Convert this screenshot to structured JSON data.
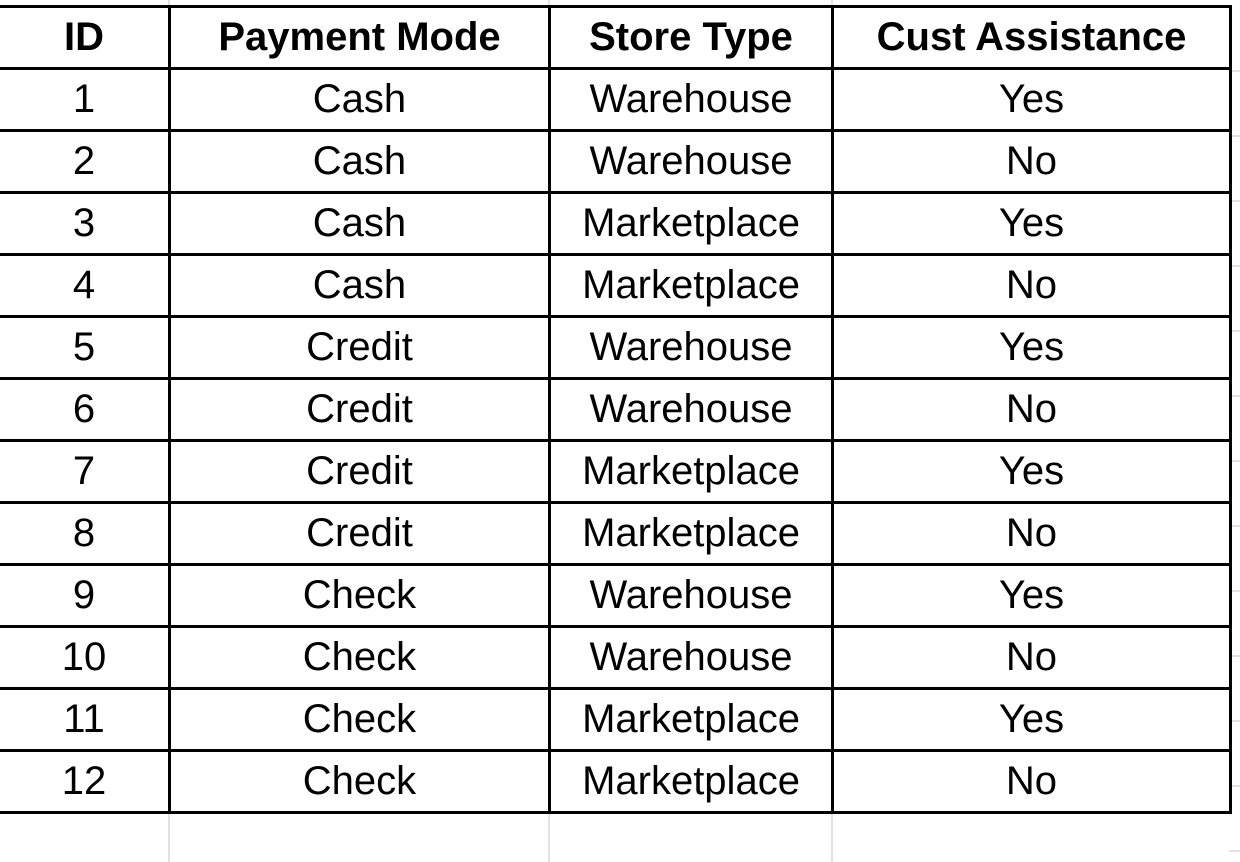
{
  "table": {
    "headers": [
      "ID",
      "Payment Mode",
      "Store Type",
      "Cust Assistance"
    ],
    "rows": [
      [
        "1",
        "Cash",
        "Warehouse",
        "Yes"
      ],
      [
        "2",
        "Cash",
        "Warehouse",
        "No"
      ],
      [
        "3",
        "Cash",
        "Marketplace",
        "Yes"
      ],
      [
        "4",
        "Cash",
        "Marketplace",
        "No"
      ],
      [
        "5",
        "Credit",
        "Warehouse",
        "Yes"
      ],
      [
        "6",
        "Credit",
        "Warehouse",
        "No"
      ],
      [
        "7",
        "Credit",
        "Marketplace",
        "Yes"
      ],
      [
        "8",
        "Credit",
        "Marketplace",
        "No"
      ],
      [
        "9",
        "Check",
        "Warehouse",
        "Yes"
      ],
      [
        "10",
        "Check",
        "Warehouse",
        "No"
      ],
      [
        "11",
        "Check",
        "Marketplace",
        "Yes"
      ],
      [
        "12",
        "Check",
        "Marketplace",
        "No"
      ]
    ]
  }
}
